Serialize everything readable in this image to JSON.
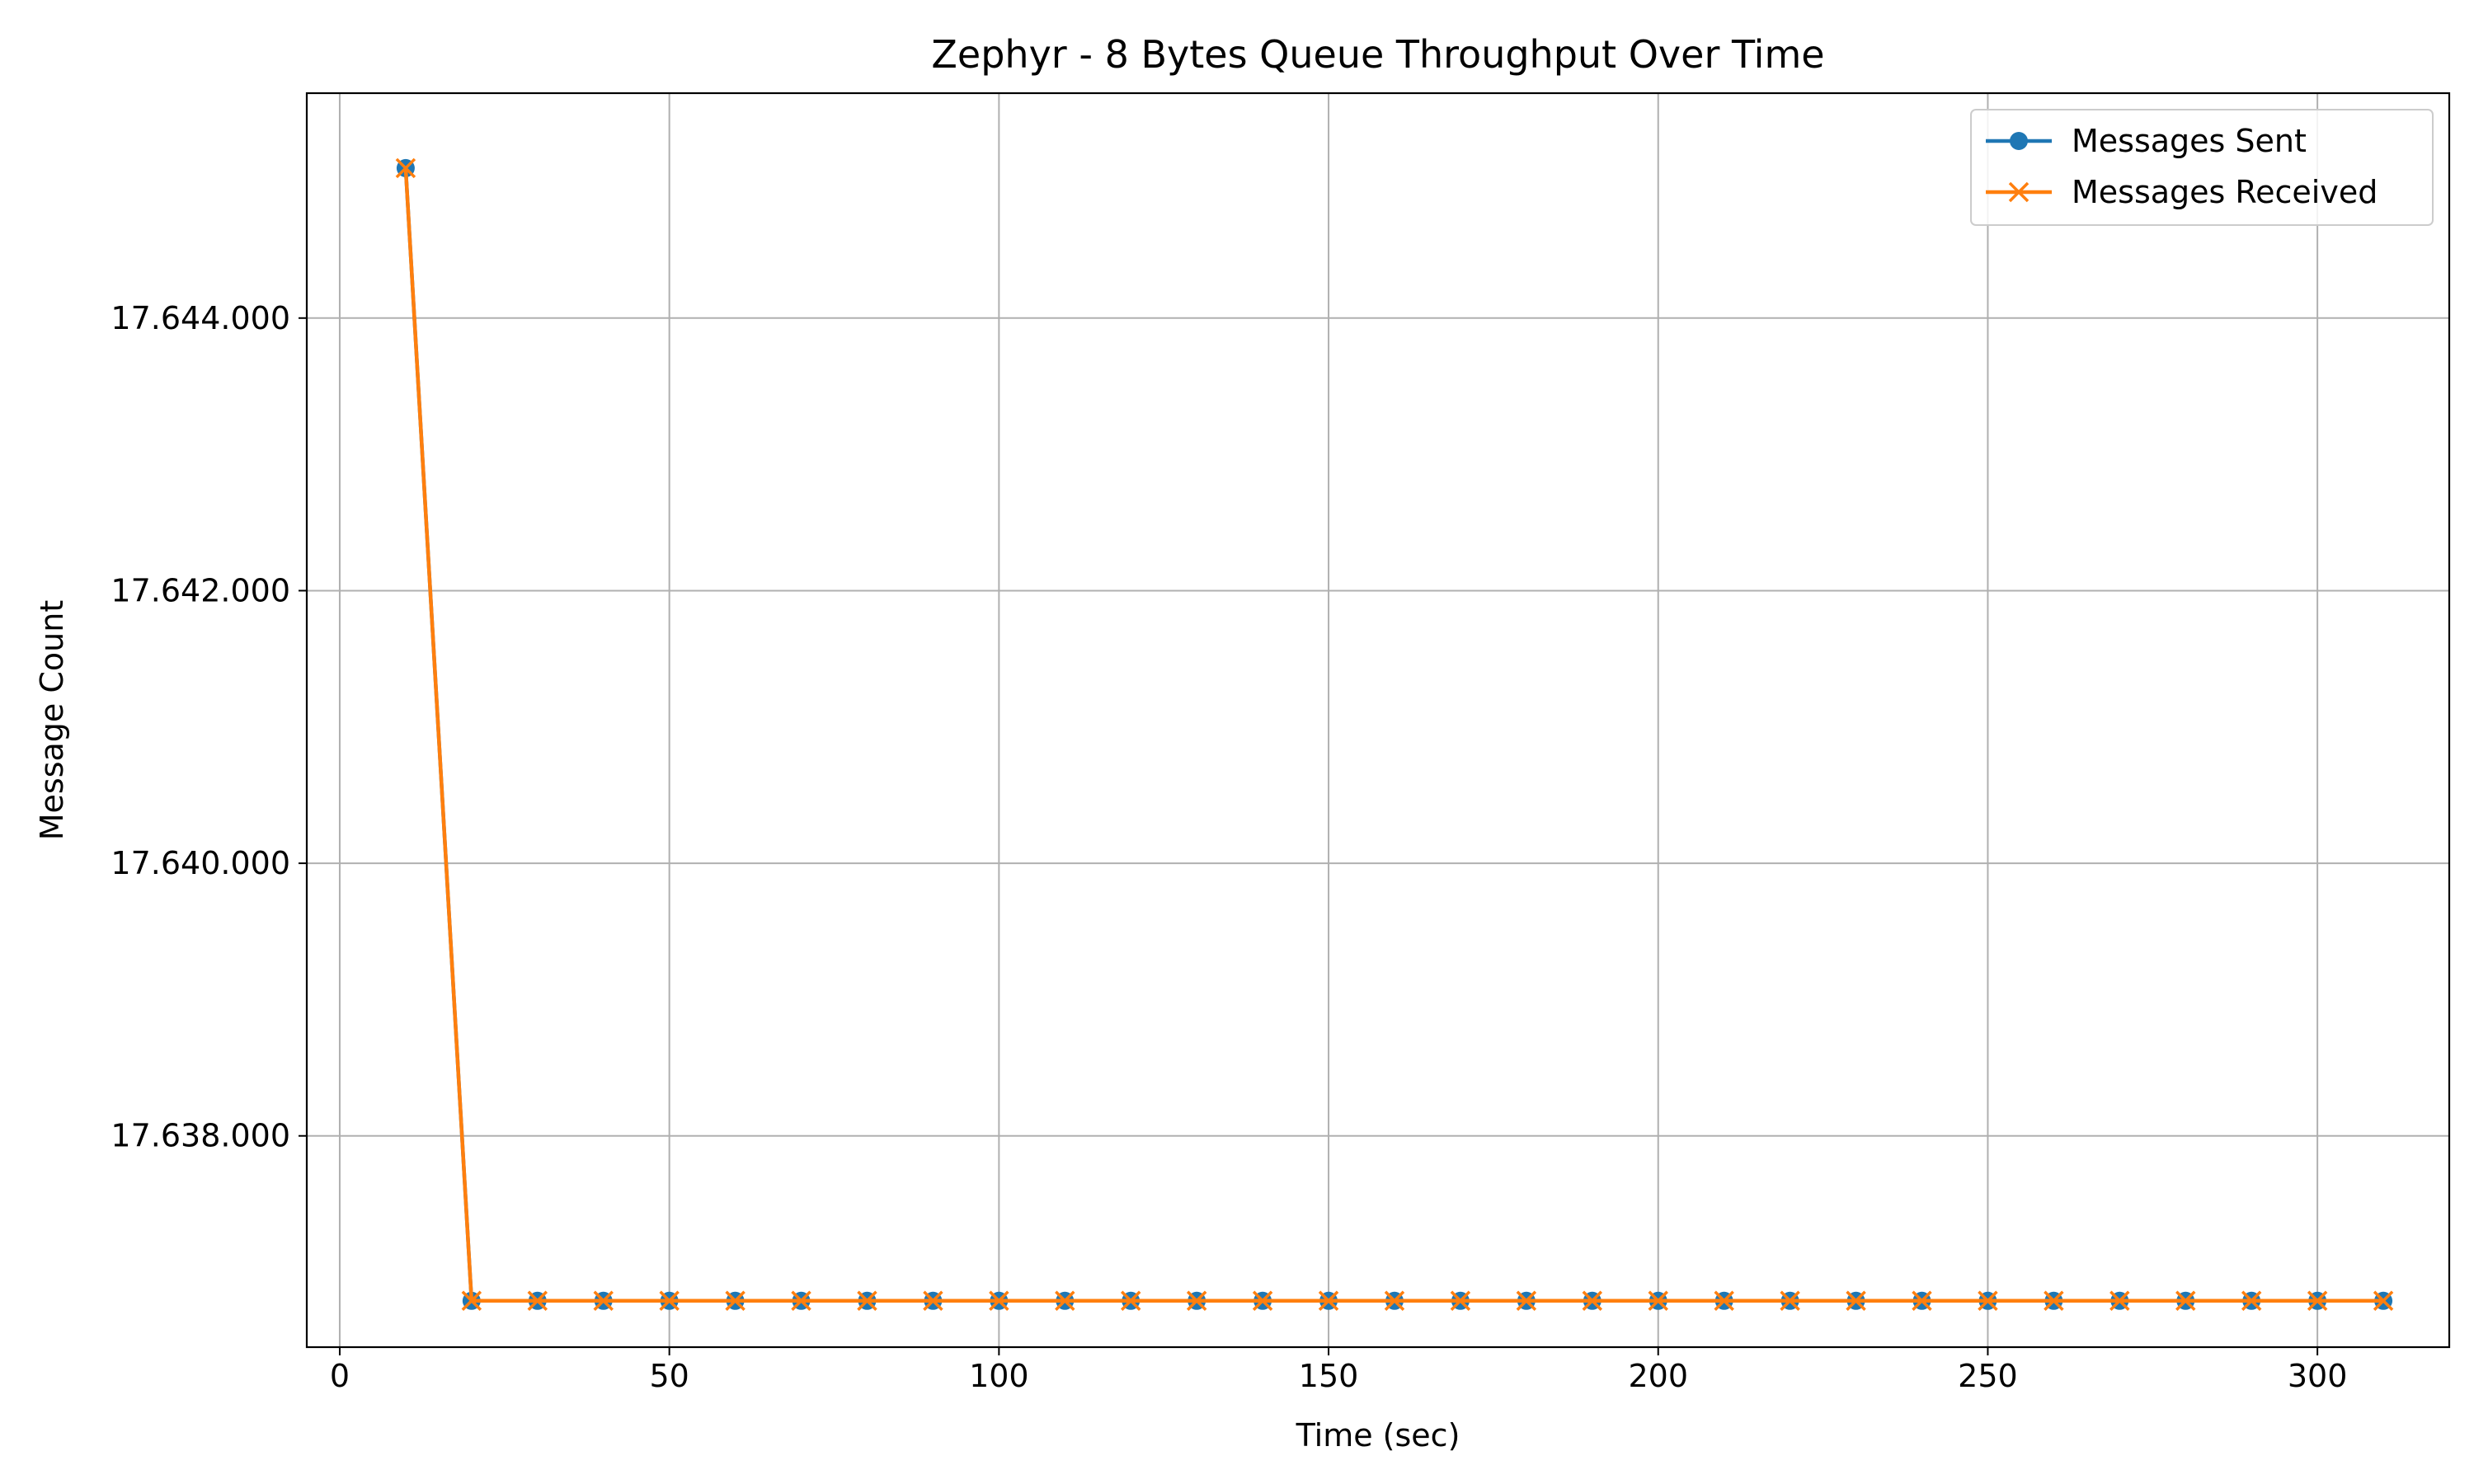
{
  "chart_data": {
    "type": "line",
    "title": "Zephyr - 8 Bytes Queue Throughput Over Time",
    "xlabel": "Time (sec)",
    "ylabel": "Message Count",
    "xlim": [
      -5,
      320
    ],
    "ylim": [
      17636450,
      17645650
    ],
    "x_ticks": [
      0,
      50,
      100,
      150,
      200,
      250,
      300
    ],
    "x_tick_labels": [
      "0",
      "50",
      "100",
      "150",
      "200",
      "250",
      "300"
    ],
    "y_ticks": [
      17638000,
      17640000,
      17642000,
      17644000
    ],
    "y_tick_labels": [
      "17.638.000",
      "17.640.000",
      "17.642.000",
      "17.644.000"
    ],
    "grid": true,
    "legend_position": "top-right",
    "x": [
      10,
      20,
      30,
      40,
      50,
      60,
      70,
      80,
      90,
      100,
      110,
      120,
      130,
      140,
      150,
      160,
      170,
      180,
      190,
      200,
      210,
      220,
      230,
      240,
      250,
      260,
      270,
      280,
      290,
      300,
      310
    ],
    "series": [
      {
        "name": "Messages Sent",
        "color": "#1f77b4",
        "marker": "circle",
        "values": [
          17645100,
          17636790,
          17636790,
          17636790,
          17636790,
          17636790,
          17636790,
          17636790,
          17636790,
          17636790,
          17636790,
          17636790,
          17636790,
          17636790,
          17636790,
          17636790,
          17636790,
          17636790,
          17636790,
          17636790,
          17636790,
          17636790,
          17636790,
          17636790,
          17636790,
          17636790,
          17636790,
          17636790,
          17636790,
          17636790,
          17636790
        ]
      },
      {
        "name": "Messages Received",
        "color": "#ff7f0e",
        "marker": "x",
        "values": [
          17645100,
          17636790,
          17636790,
          17636790,
          17636790,
          17636790,
          17636790,
          17636790,
          17636790,
          17636790,
          17636790,
          17636790,
          17636790,
          17636790,
          17636790,
          17636790,
          17636790,
          17636790,
          17636790,
          17636790,
          17636790,
          17636790,
          17636790,
          17636790,
          17636790,
          17636790,
          17636790,
          17636790,
          17636790,
          17636790,
          17636790
        ]
      }
    ]
  }
}
